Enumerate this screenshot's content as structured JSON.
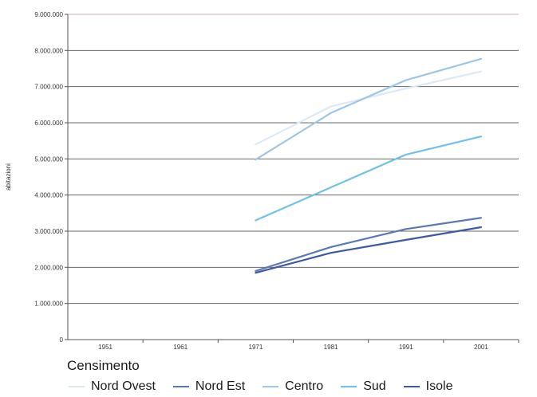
{
  "chart_data": {
    "type": "line",
    "title": "",
    "xlabel": "Censimento",
    "ylabel": "abitazioni",
    "categories": [
      "1951",
      "1961",
      "1971",
      "1981",
      "1991",
      "2001"
    ],
    "y_ticks": [
      "0",
      "1.000.000",
      "2.000.000",
      "3.000.000",
      "4.000.000",
      "5.000.000",
      "6.000.000",
      "7.000.000",
      "8.000.000",
      "9.000.000"
    ],
    "ylim": [
      0,
      9000000
    ],
    "grid": true,
    "legend_position": "bottom",
    "series": [
      {
        "name": "Nord Ovest",
        "color": "#dbe9f6",
        "values": [
          null,
          null,
          5400000,
          6450000,
          6950000,
          7420000
        ]
      },
      {
        "name": "Nord Est",
        "color": "#5878b8",
        "values": [
          null,
          null,
          1900000,
          2560000,
          3060000,
          3370000
        ]
      },
      {
        "name": "Centro",
        "color": "#9cc6e8",
        "values": [
          null,
          null,
          4980000,
          6270000,
          7180000,
          7770000
        ]
      },
      {
        "name": "Sud",
        "color": "#6ec1ec",
        "values": [
          null,
          null,
          3300000,
          4210000,
          5120000,
          5620000
        ]
      },
      {
        "name": "Isole",
        "color": "#3d59a6",
        "values": [
          null,
          null,
          1850000,
          2400000,
          2760000,
          3110000
        ]
      }
    ]
  }
}
